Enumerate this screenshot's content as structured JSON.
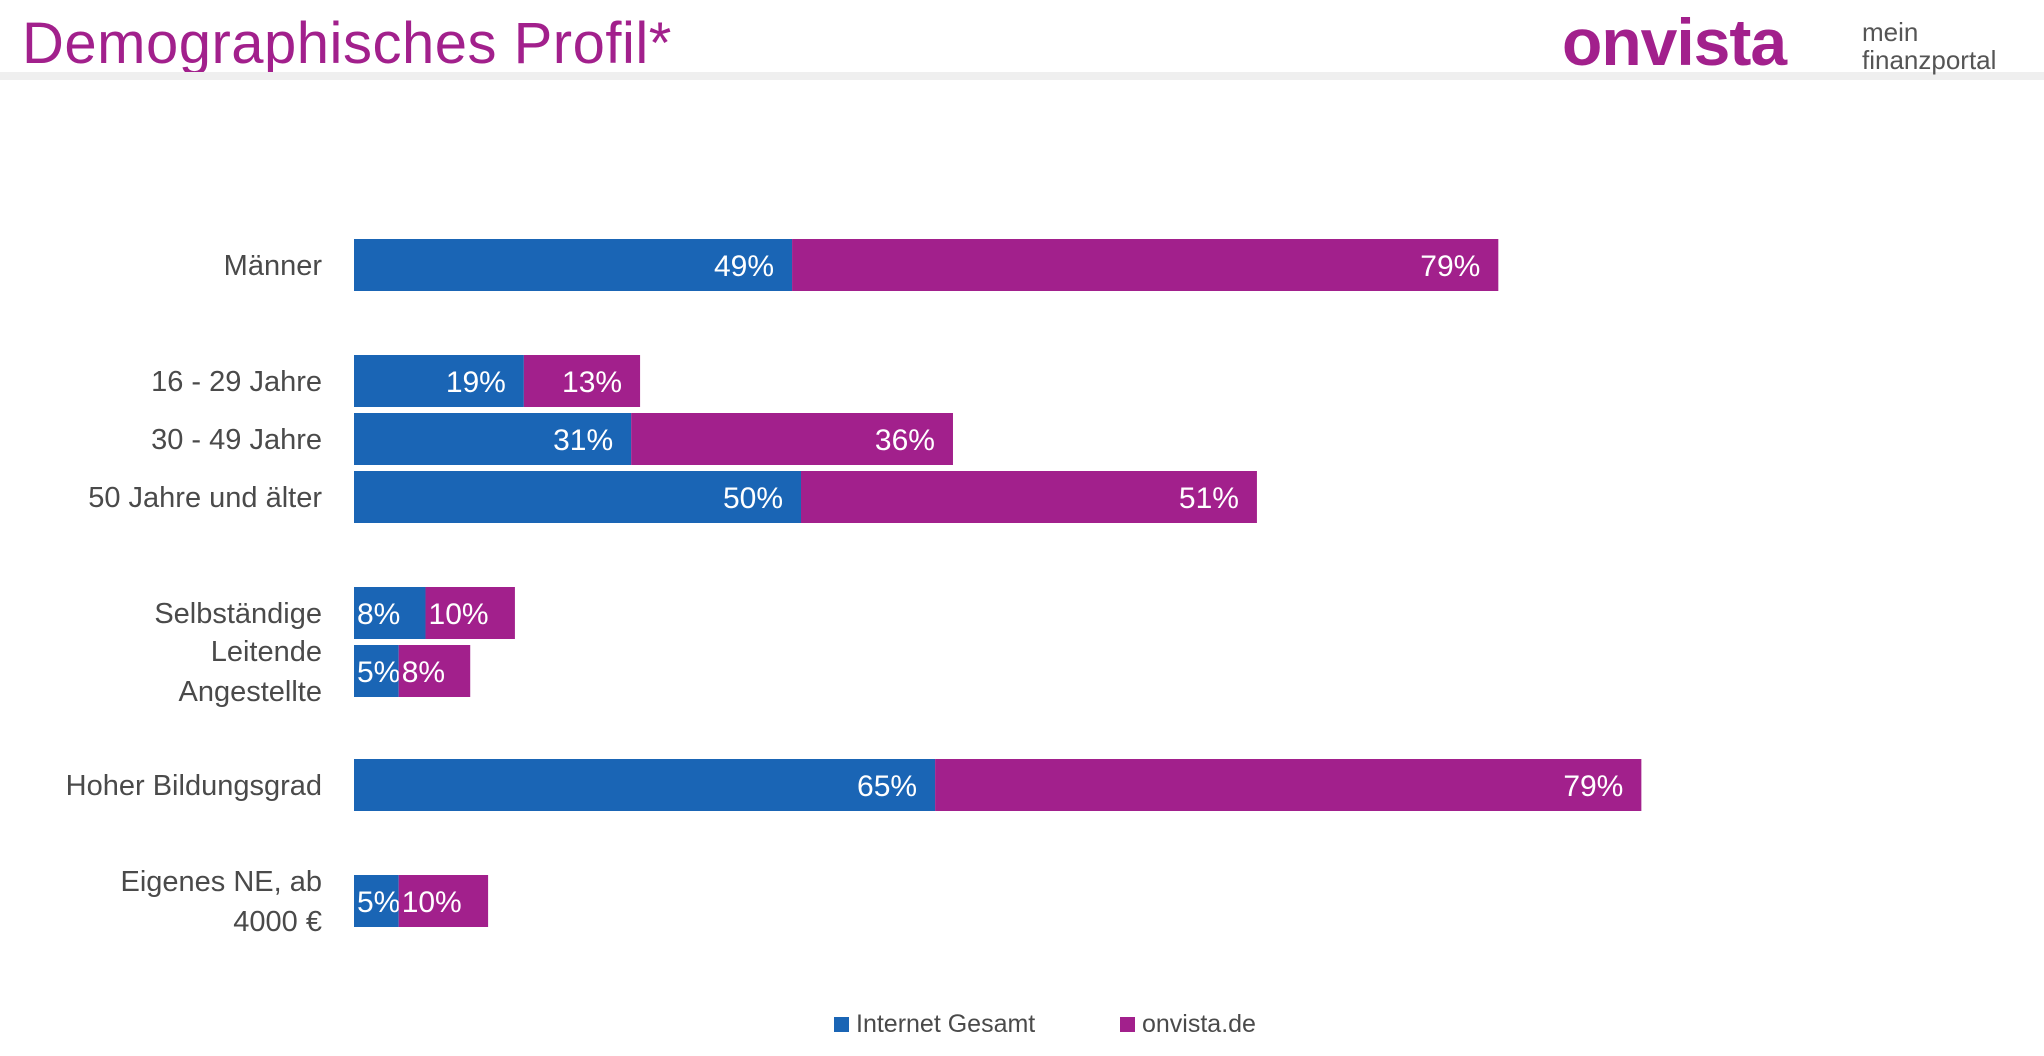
{
  "header": {
    "title": "Demographisches Profil*",
    "logo_text": "onvista",
    "tagline": [
      "mein",
      "finanzportal"
    ]
  },
  "colors": {
    "internet_gesamt": "#1a65b5",
    "onvista_de": "#a2208c"
  },
  "chart_data": {
    "type": "bar",
    "orientation": "horizontal",
    "stacked": true,
    "categories": [
      [
        "Männer"
      ],
      [
        "16 - 29 Jahre"
      ],
      [
        "30 - 49 Jahre"
      ],
      [
        "50 Jahre und älter"
      ],
      [
        "Selbständige"
      ],
      [
        "Leitende",
        "Angestellte"
      ],
      [
        "Hoher Bildungsgrad"
      ],
      [
        "Eigenes NE, ab",
        "4000 €"
      ]
    ],
    "series": [
      {
        "name": "Internet Gesamt",
        "values": [
          49,
          19,
          31,
          50,
          8,
          5,
          65,
          5
        ]
      },
      {
        "name": "onvista.de",
        "values": [
          79,
          13,
          36,
          51,
          10,
          8,
          79,
          10
        ]
      }
    ],
    "value_suffix": "%",
    "legend_position": "bottom",
    "grid": false
  }
}
